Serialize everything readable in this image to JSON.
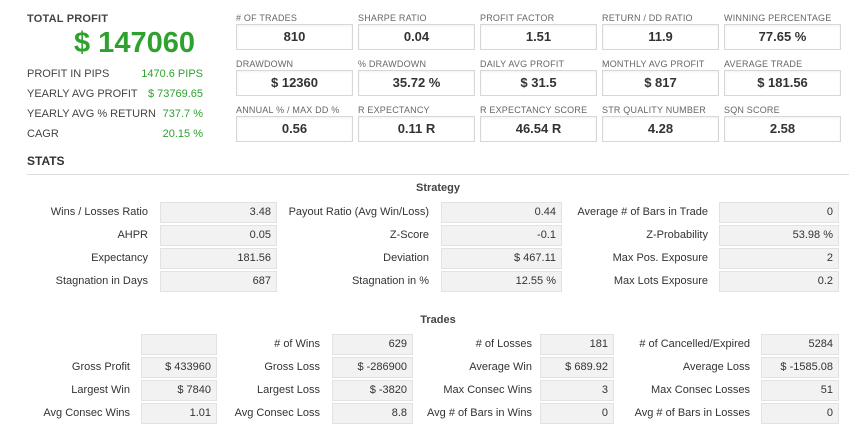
{
  "summary": {
    "total_label": "TOTAL PROFIT",
    "total_value": "$ 147060",
    "rows": [
      {
        "label": "PROFIT IN PIPS",
        "value": "1470.6 PIPS"
      },
      {
        "label": "YEARLY AVG PROFIT",
        "value": "$ 73769.65"
      },
      {
        "label": "YEARLY AVG % RETURN",
        "value": "737.7 %"
      },
      {
        "label": "CAGR",
        "value": "20.15 %"
      }
    ]
  },
  "cards": [
    {
      "label": "# OF TRADES",
      "value": "810"
    },
    {
      "label": "SHARPE RATIO",
      "value": "0.04"
    },
    {
      "label": "PROFIT FACTOR",
      "value": "1.51"
    },
    {
      "label": "RETURN / DD RATIO",
      "value": "11.9"
    },
    {
      "label": "WINNING PERCENTAGE",
      "value": "77.65 %"
    },
    {
      "label": "DRAWDOWN",
      "value": "$ 12360"
    },
    {
      "label": "% DRAWDOWN",
      "value": "35.72 %"
    },
    {
      "label": "DAILY AVG PROFIT",
      "value": "$ 31.5"
    },
    {
      "label": "MONTHLY AVG PROFIT",
      "value": "$ 817"
    },
    {
      "label": "AVERAGE TRADE",
      "value": "$ 181.56"
    },
    {
      "label": "ANNUAL % / MAX DD %",
      "value": "0.56"
    },
    {
      "label": "R EXPECTANCY",
      "value": "0.11 R"
    },
    {
      "label": "R EXPECTANCY SCORE",
      "value": "46.54 R"
    },
    {
      "label": "STR QUALITY NUMBER",
      "value": "4.28"
    },
    {
      "label": "SQN SCORE",
      "value": "2.58"
    }
  ],
  "stats": {
    "title": "STATS",
    "strategy": {
      "title": "Strategy",
      "rows": [
        [
          {
            "label": "Wins / Losses Ratio",
            "value": "3.48"
          },
          {
            "label": "Payout Ratio (Avg Win/Loss)",
            "value": "0.44"
          },
          {
            "label": "Average # of Bars in Trade",
            "value": "0"
          }
        ],
        [
          {
            "label": "AHPR",
            "value": "0.05"
          },
          {
            "label": "Z-Score",
            "value": "-0.1"
          },
          {
            "label": "Z-Probability",
            "value": "53.98 %"
          }
        ],
        [
          {
            "label": "Expectancy",
            "value": "181.56"
          },
          {
            "label": "Deviation",
            "value": "$ 467.11"
          },
          {
            "label": "Max Pos. Exposure",
            "value": "2"
          }
        ],
        [
          {
            "label": "Stagnation in Days",
            "value": "687"
          },
          {
            "label": "Stagnation in %",
            "value": "12.55 %"
          },
          {
            "label": "Max Lots Exposure",
            "value": "0.2"
          }
        ]
      ]
    },
    "trades": {
      "title": "Trades",
      "rows": [
        [
          {
            "label": "",
            "value": ""
          },
          {
            "label": "# of Wins",
            "value": "629"
          },
          {
            "label": "# of Losses",
            "value": "181"
          },
          {
            "label": "# of Cancelled/Expired",
            "value": "5284"
          }
        ],
        [
          {
            "label": "Gross Profit",
            "value": "$ 433960"
          },
          {
            "label": "Gross Loss",
            "value": "$ -286900"
          },
          {
            "label": "Average Win",
            "value": "$ 689.92"
          },
          {
            "label": "Average Loss",
            "value": "$ -1585.08"
          }
        ],
        [
          {
            "label": "Largest Win",
            "value": "$ 7840"
          },
          {
            "label": "Largest Loss",
            "value": "$ -3820"
          },
          {
            "label": "Max Consec Wins",
            "value": "3"
          },
          {
            "label": "Max Consec Losses",
            "value": "51"
          }
        ],
        [
          {
            "label": "Avg Consec Wins",
            "value": "1.01"
          },
          {
            "label": "Avg Consec Loss",
            "value": "8.8"
          },
          {
            "label": "Avg # of Bars in Wins",
            "value": "0"
          },
          {
            "label": "Avg # of Bars in Losses",
            "value": "0"
          }
        ]
      ]
    }
  }
}
